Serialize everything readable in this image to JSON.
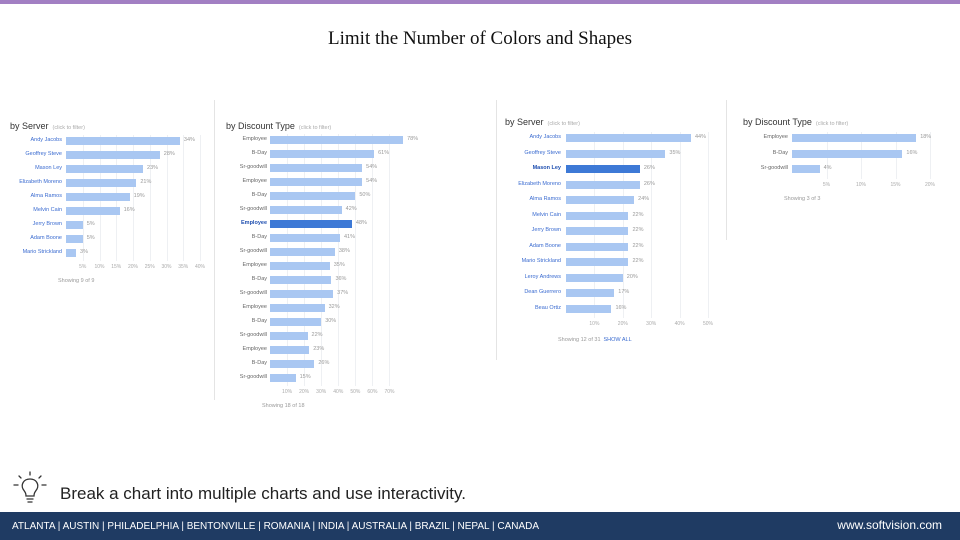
{
  "slide": {
    "title": "Limit the Number of Colors and Shapes",
    "tip": "Break a chart into multiple charts and use interactivity.",
    "footer_cities": "ATLANTA | AUSTIN | PHILADELPHIA | BENTONVILLE | ROMANIA | INDIA | AUSTRALIA | BRAZIL | NEPAL | CANADA",
    "footer_site": "www.softvision.com"
  },
  "colors": {
    "accent_top": "#a27fc3",
    "bar": "#a9c7f2",
    "bar_highlight": "#3d79d6",
    "footer_bg": "#1f3b63"
  },
  "chart_data": [
    {
      "type": "bar",
      "orientation": "horizontal",
      "title": "by Server",
      "subtitle": "(click to filter)",
      "categories": [
        "Andy Jacobs",
        "Geoffrey Steve",
        "Mason Ley",
        "Elizabeth Moreno",
        "Alma Ramos",
        "Melvin Cain",
        "Jerry Brown",
        "Adam Boone",
        "Mario Strickland"
      ],
      "values": [
        34,
        28,
        23,
        21,
        19,
        16,
        5,
        5,
        3
      ],
      "value_labels": [
        "34%",
        "28%",
        "23%",
        "21%",
        "19%",
        "16%",
        "5%",
        "5%",
        "3%"
      ],
      "ticks": [
        "5%",
        "10%",
        "15%",
        "20%",
        "25%",
        "30%",
        "35%",
        "40%"
      ],
      "xlim": [
        0,
        40
      ],
      "footnote": "Showing 9 of 9"
    },
    {
      "type": "bar",
      "orientation": "horizontal",
      "title": "by Discount Type",
      "subtitle": "(click to filter)",
      "categories": [
        "Employee",
        "B-Day",
        "Sr-goodwill",
        "Employee",
        "B-Day",
        "Sr-goodwill",
        "Employee",
        "B-Day",
        "Sr-goodwill",
        "Employee",
        "B-Day",
        "Sr-goodwill",
        "Employee",
        "B-Day",
        "Sr-goodwill",
        "Employee",
        "B-Day",
        "Sr-goodwill"
      ],
      "values": [
        78,
        61,
        54,
        54,
        50,
        42,
        48,
        41,
        38,
        35,
        36,
        37,
        32,
        30,
        22,
        23,
        26,
        15
      ],
      "value_labels": [
        "78%",
        "61%",
        "54%",
        "54%",
        "50%",
        "42%",
        "48%",
        "41%",
        "38%",
        "35%",
        "36%",
        "37%",
        "32%",
        "30%",
        "22%",
        "23%",
        "26%",
        "15%"
      ],
      "highlight_index": 6,
      "ticks": [
        "10%",
        "20%",
        "30%",
        "40%",
        "50%",
        "60%",
        "70%"
      ],
      "xlim": [
        0,
        75
      ],
      "footnote": "Showing 18 of 18"
    },
    {
      "type": "bar",
      "orientation": "horizontal",
      "title": "by Server",
      "subtitle": "(click to filter)",
      "categories": [
        "Andy Jacobs",
        "Geoffrey Steve",
        "Mason Ley",
        "Elizabeth Moreno",
        "Alma Ramos",
        "Melvin Cain",
        "Jerry Brown",
        "Adam Boone",
        "Mario Strickland",
        "Leroy Andrews",
        "Dean Guerrero",
        "Beau Ortiz"
      ],
      "values": [
        44,
        35,
        26,
        26,
        24,
        22,
        22,
        22,
        22,
        20,
        17,
        16
      ],
      "value_labels": [
        "44%",
        "35%",
        "26%",
        "26%",
        "24%",
        "22%",
        "22%",
        "22%",
        "22%",
        "20%",
        "17%",
        "16%"
      ],
      "highlight_index": 2,
      "ticks": [
        "10%",
        "20%",
        "30%",
        "40%",
        "50%"
      ],
      "xlim": [
        0,
        50
      ],
      "footnote": "Showing 12 of 31",
      "footnote_link": "SHOW ALL"
    },
    {
      "type": "bar",
      "orientation": "horizontal",
      "title": "by Discount Type",
      "subtitle": "(click to filter)",
      "categories": [
        "Employee",
        "B-Day",
        "Sr-goodwill"
      ],
      "values": [
        18,
        16,
        4
      ],
      "value_labels": [
        "18%",
        "16%",
        "4%"
      ],
      "ticks": [
        "5%",
        "10%",
        "15%",
        "20%"
      ],
      "xlim": [
        0,
        20
      ],
      "footnote": "Showing 3 of 3"
    }
  ]
}
